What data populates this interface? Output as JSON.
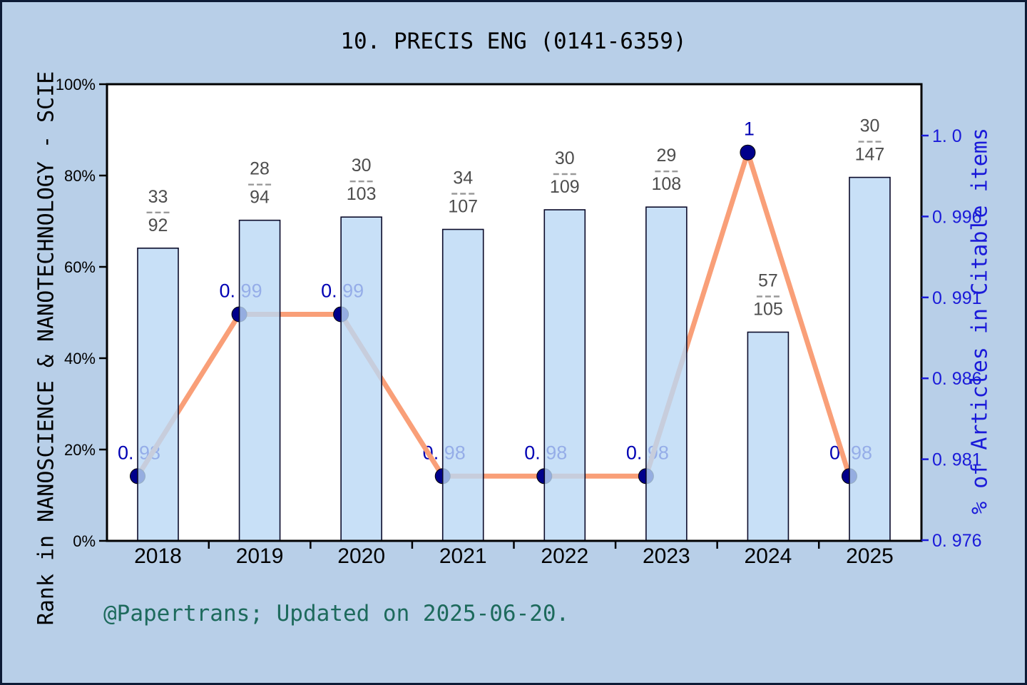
{
  "chart_data": {
    "type": "bar+line",
    "title": "10. PRECIS ENG (0141-6359)",
    "categories": [
      "2018",
      "2019",
      "2020",
      "2021",
      "2022",
      "2023",
      "2024",
      "2025"
    ],
    "bars": {
      "description": "Rank in category shown as fraction; bar height = (1 - rank/total) on left % axis",
      "fractions": [
        {
          "num": "33",
          "den": "92"
        },
        {
          "num": "28",
          "den": "94"
        },
        {
          "num": "30",
          "den": "103"
        },
        {
          "num": "34",
          "den": "107"
        },
        {
          "num": "30",
          "den": "109"
        },
        {
          "num": "29",
          "den": "108"
        },
        {
          "num": "57",
          "den": "105"
        },
        {
          "num": "30",
          "den": "147"
        }
      ],
      "heights_pct": [
        64.1,
        70.2,
        70.9,
        68.2,
        72.5,
        73.1,
        45.7,
        79.6
      ]
    },
    "line": {
      "name": "% of Articles in Citable items",
      "values": [
        0.98,
        0.99,
        0.99,
        0.98,
        0.98,
        0.98,
        1,
        0.98
      ],
      "point_labels": [
        "0. 98",
        "0. 99",
        "0. 99",
        "0. 98",
        "0. 98",
        "0. 98",
        "1",
        "0. 98"
      ]
    },
    "left_axis": {
      "label": "Rank in NANOSCIENCE & NANOTECHNOLOGY - SCIE",
      "tick_labels": [
        "0%",
        "20%",
        "40%",
        "60%",
        "80%",
        "100%"
      ],
      "range_pct": [
        0,
        100
      ],
      "grid": false
    },
    "right_axis": {
      "label": "% of Articles in Citable items",
      "tick_labels": [
        "1. 0",
        "0. 996",
        "0. 991",
        "0. 986",
        "0. 981",
        "0. 976"
      ],
      "range": [
        0.976,
        1.0
      ]
    },
    "caption": "@Papertrans; Updated on 2025-06-20."
  },
  "colors": {
    "background": "#b8cfe8",
    "page_border": "#0d1b36",
    "plot_bg": "#ffffff",
    "frame": "#000000",
    "bar_fill_rgba": "rgba(186,216,245,0.8)",
    "bar_stroke": "#0b0b2a",
    "line": "#f99f78",
    "dot_fill": "#00008b",
    "dot_stroke": "#000000",
    "point_label": "#0000b4",
    "right_axis_text": "#1a1ad9",
    "left_axis_text": "#000000",
    "fraction_text": "#4d4d4d",
    "fraction_bar": "#999999",
    "caption_text": "#1d6a5c"
  }
}
